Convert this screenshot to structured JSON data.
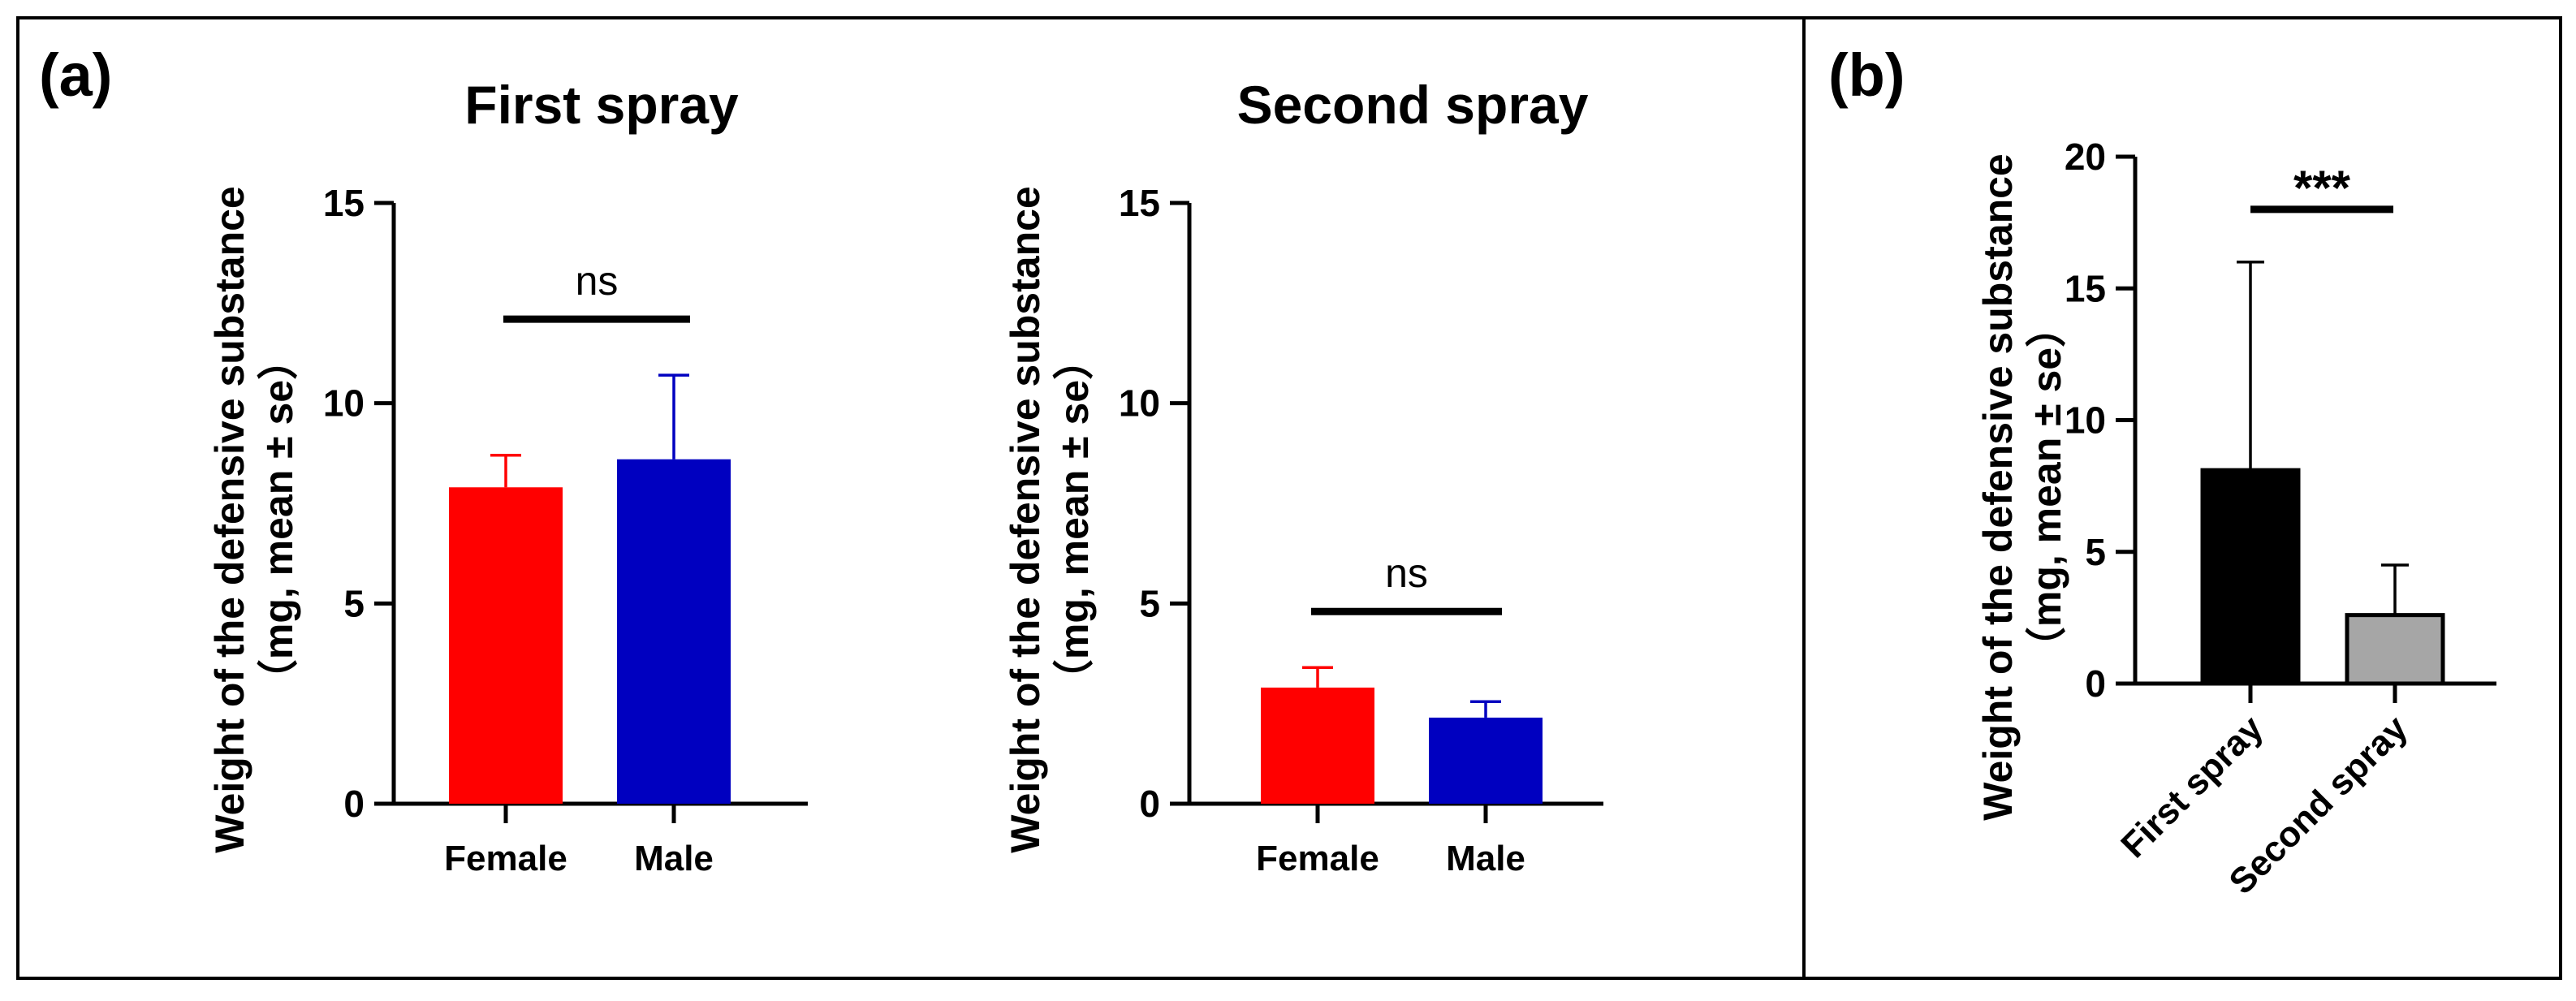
{
  "figure": {
    "panel_a_label": "(a)",
    "panel_b_label": "(b)"
  },
  "chart_data": [
    {
      "type": "bar",
      "panel": "a",
      "title": "First spray",
      "ylabel_line1": "Weight of the defensive substance",
      "ylabel_line2": "（mg, mean ± se）",
      "categories": [
        "Female",
        "Male"
      ],
      "values": [
        7.9,
        8.6
      ],
      "errors": [
        0.8,
        2.1
      ],
      "colors": [
        "#ff0000",
        "#0000c0"
      ],
      "ylim": [
        0,
        15
      ],
      "yticks": [
        0,
        5,
        10,
        15
      ],
      "yticklabels": [
        "0",
        "5",
        "10",
        "15"
      ],
      "significance": {
        "label": "ns",
        "y": 12.1
      },
      "grid": false
    },
    {
      "type": "bar",
      "panel": "a",
      "title": "Second spray",
      "ylabel_line1": "Weight of the defensive substance",
      "ylabel_line2": "（mg, mean ± se）",
      "categories": [
        "Female",
        "Male"
      ],
      "values": [
        2.9,
        2.15
      ],
      "errors": [
        0.5,
        0.4
      ],
      "colors": [
        "#ff0000",
        "#0000c0"
      ],
      "ylim": [
        0,
        15
      ],
      "yticks": [
        0,
        5,
        10,
        15
      ],
      "yticklabels": [
        "0",
        "5",
        "10",
        "15"
      ],
      "significance": {
        "label": "ns",
        "y": 4.8
      },
      "grid": false
    },
    {
      "type": "bar",
      "panel": "b",
      "title": "",
      "ylabel_line1": "Weight of the defensive substance",
      "ylabel_line2": "（mg, mean ± se）",
      "categories": [
        "First spray",
        "Second spray"
      ],
      "values": [
        8.1,
        2.6
      ],
      "errors": [
        7.9,
        1.9
      ],
      "colors": [
        "#000000",
        "#a6a6a6"
      ],
      "ylim": [
        0,
        20
      ],
      "yticks": [
        0,
        5,
        10,
        15,
        20
      ],
      "yticklabels": [
        "0",
        "5",
        "10",
        "15",
        "20"
      ],
      "significance": {
        "label": "***",
        "y": 18.0
      },
      "grid": false
    }
  ]
}
